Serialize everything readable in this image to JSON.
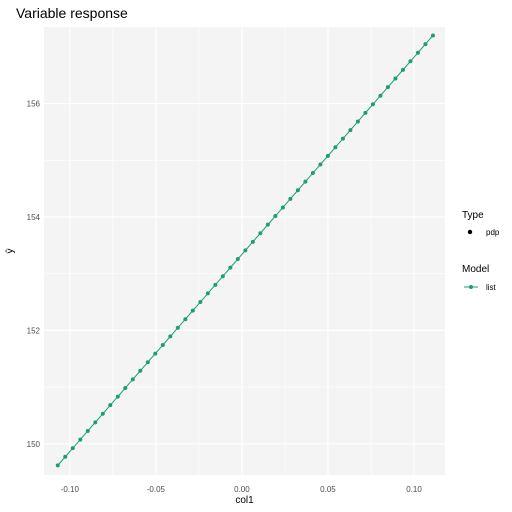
{
  "chart_data": {
    "type": "line",
    "title": "Variable response",
    "xlabel": "col1",
    "ylabel": "ŷ",
    "xlim": [
      -0.115,
      0.118
    ],
    "ylim": [
      149.45,
      157.35
    ],
    "x_ticks": [
      {
        "value": -0.1,
        "label": "-0.10"
      },
      {
        "value": -0.05,
        "label": "-0.05"
      },
      {
        "value": 0.0,
        "label": "0.00"
      },
      {
        "value": 0.05,
        "label": "0.05"
      },
      {
        "value": 0.1,
        "label": "0.10"
      }
    ],
    "y_ticks": [
      {
        "value": 150,
        "label": "150"
      },
      {
        "value": 152,
        "label": "152"
      },
      {
        "value": 154,
        "label": "154"
      },
      {
        "value": 156,
        "label": "156"
      }
    ],
    "x_start": -0.107,
    "x_end": 0.111,
    "y_start": 149.62,
    "y_end": 157.2,
    "point_count": 51,
    "series": [
      {
        "name": "list",
        "color": "#1b9e77"
      }
    ],
    "legend": {
      "placement": "right",
      "groups": [
        {
          "title": "Type",
          "items": [
            {
              "label": "pdp",
              "color": "#000000"
            }
          ]
        },
        {
          "title": "Model",
          "items": [
            {
              "label": "list",
              "color": "#1b9e77"
            }
          ]
        }
      ]
    },
    "grid": true,
    "panel_background": "#f4f4f4",
    "grid_color": "#ffffff"
  }
}
